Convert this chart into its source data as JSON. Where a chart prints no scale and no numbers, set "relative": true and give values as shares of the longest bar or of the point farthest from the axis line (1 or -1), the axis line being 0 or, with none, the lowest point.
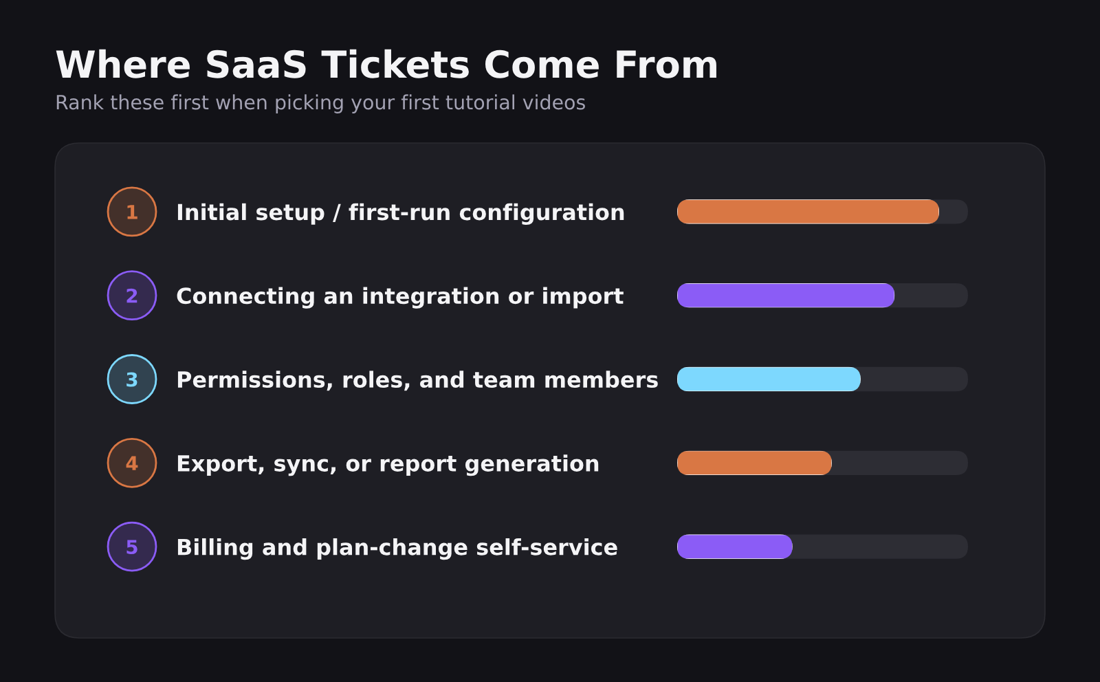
{
  "chart_data": {
    "type": "bar",
    "orientation": "horizontal",
    "relative": true,
    "title": "Where SaaS Tickets Come From",
    "subtitle": "Rank these first when picking your first tutorial videos",
    "categories": [
      "Initial setup / first-run configuration",
      "Connecting an integration or import",
      "Permissions, roles, and team members",
      "Export, sync, or report generation",
      "Billing and plan-change self-service"
    ],
    "values": [
      1,
      0.83,
      0.7,
      0.59,
      0.44
    ],
    "colors": [
      "#d97744",
      "#8b5cf6",
      "#7dd8fe",
      "#d97744",
      "#8b5cf6"
    ],
    "annotations": [
      "1",
      "2",
      "3",
      "4",
      "5"
    ]
  }
}
